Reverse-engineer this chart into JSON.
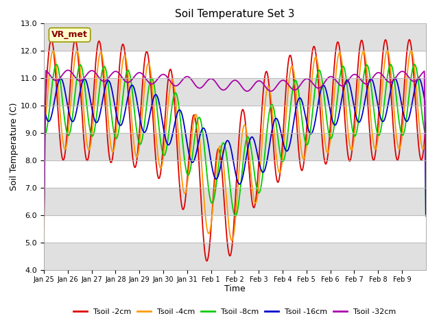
{
  "title": "Soil Temperature Set 3",
  "xlabel": "Time",
  "ylabel": "Soil Temperature (C)",
  "ylim": [
    4.0,
    13.0
  ],
  "yticks": [
    4.0,
    5.0,
    6.0,
    7.0,
    8.0,
    9.0,
    10.0,
    11.0,
    12.0,
    13.0
  ],
  "xtick_labels": [
    "Jan 25",
    "Jan 26",
    "Jan 27",
    "Jan 28",
    "Jan 29",
    "Jan 30",
    "Jan 31",
    "Feb 1",
    "Feb 2",
    "Feb 3",
    "Feb 4",
    "Feb 5",
    "Feb 6",
    "Feb 7",
    "Feb 8",
    "Feb 9"
  ],
  "legend_labels": [
    "Tsoil -2cm",
    "Tsoil -4cm",
    "Tsoil -8cm",
    "Tsoil -16cm",
    "Tsoil -32cm"
  ],
  "line_colors": [
    "#dd0000",
    "#ff9900",
    "#00cc00",
    "#0000cc",
    "#aa00aa"
  ],
  "annotation_text": "VR_met",
  "annotation_box_facecolor": "#ffffcc",
  "annotation_box_edgecolor": "#999900",
  "annotation_text_color": "#880000",
  "background_color": "#ffffff",
  "band_color": "#e0e0e0",
  "figsize": [
    6.4,
    4.8
  ],
  "dpi": 100
}
